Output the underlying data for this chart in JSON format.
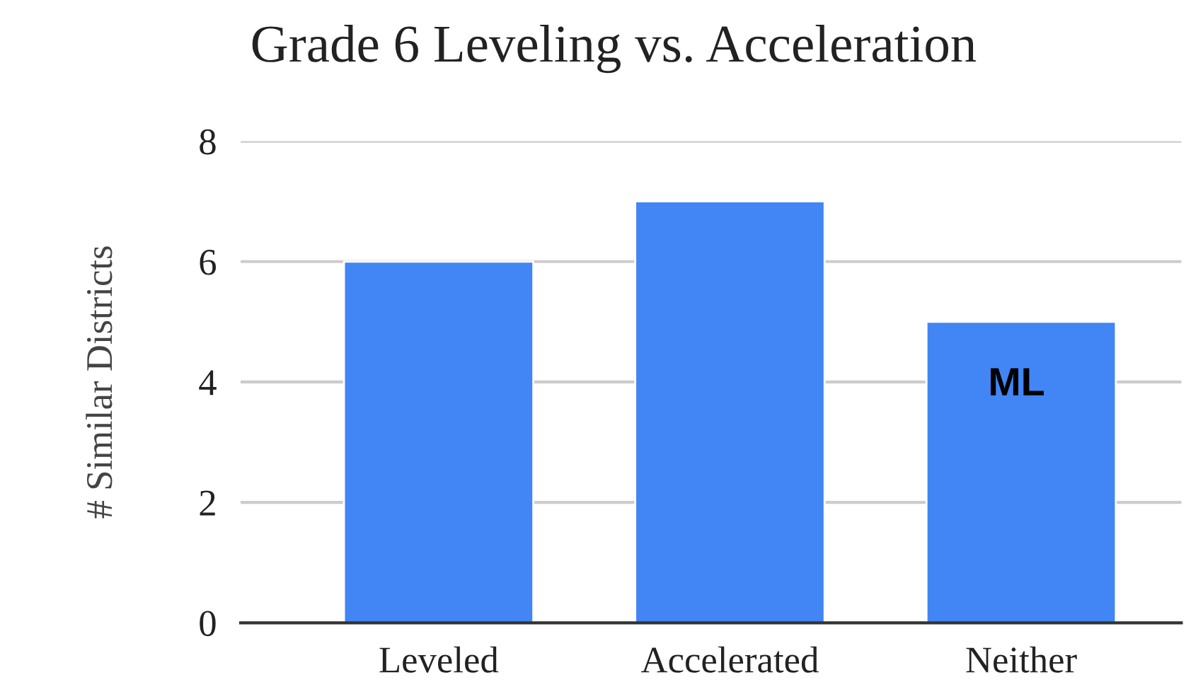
{
  "chart_data": {
    "type": "bar",
    "title": "Grade 6 Leveling vs. Acceleration",
    "ylabel": "# Similar Districts",
    "categories": [
      "Leveled",
      "Accelerated",
      "Neither"
    ],
    "values": [
      6,
      7,
      5
    ],
    "color": "#4285f4",
    "ylim": [
      0,
      8
    ],
    "yticks": [
      0,
      2,
      4,
      6,
      8
    ],
    "grid": "y",
    "annotations": [
      "ML"
    ]
  }
}
